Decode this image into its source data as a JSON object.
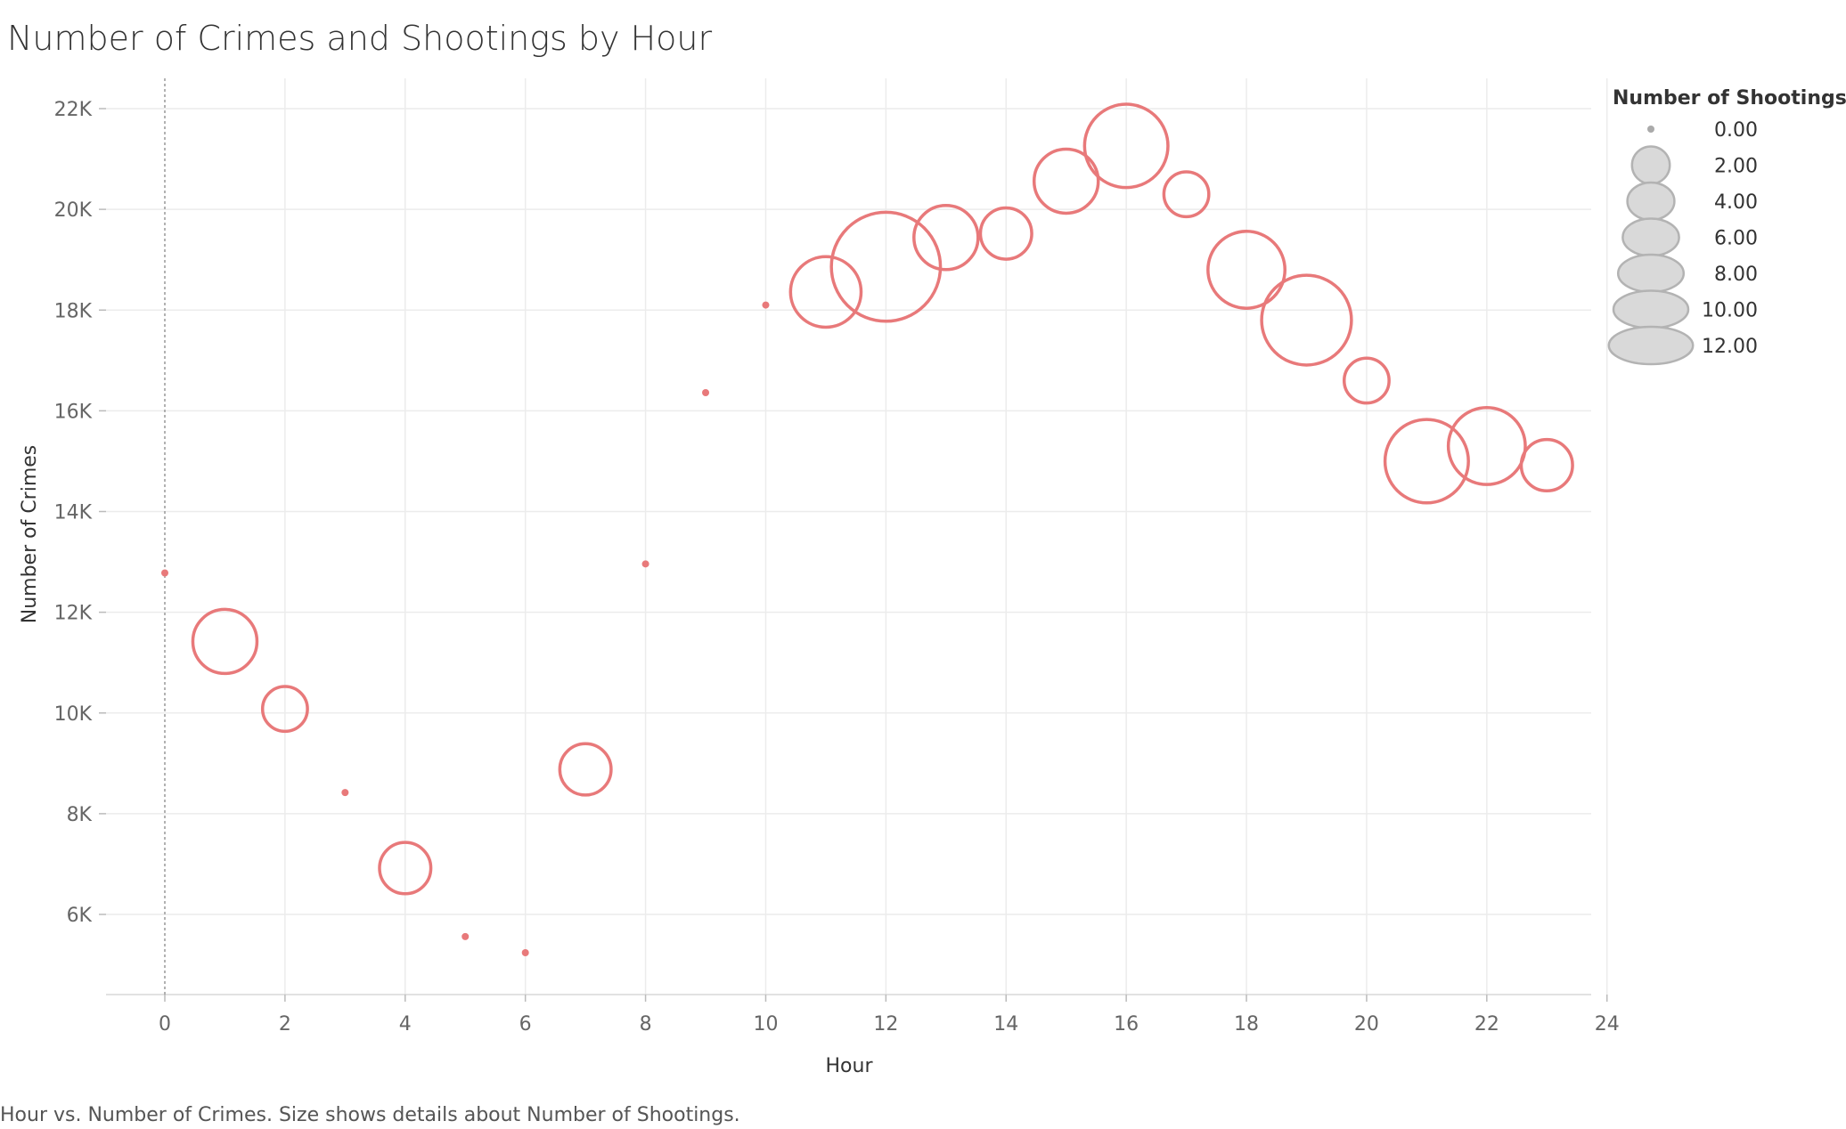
{
  "chart_data": {
    "type": "scatter",
    "title": "Number of Crimes and Shootings by Hour",
    "xlabel": "Hour",
    "ylabel": "Number of Crimes",
    "caption": "Hour vs. Number of Crimes.  Size shows details about Number of Shootings.",
    "xlim": [
      -1,
      24
    ],
    "ylim": [
      4600,
      22600
    ],
    "x_ticks": [
      0,
      2,
      4,
      6,
      8,
      10,
      12,
      14,
      16,
      18,
      20,
      22,
      24
    ],
    "y_ticks": [
      6000,
      8000,
      10000,
      12000,
      14000,
      16000,
      18000,
      20000,
      22000
    ],
    "y_tick_labels": [
      "6K",
      "8K",
      "10K",
      "12K",
      "14K",
      "16K",
      "18K",
      "20K",
      "22K"
    ],
    "grid": true,
    "legend_placement": "top-right",
    "mark_color": "#e8797a",
    "size_legend": {
      "title": "Number of Shootings",
      "values": [
        0,
        2,
        4,
        6,
        8,
        10,
        12
      ],
      "labels": [
        "0.00",
        "2.00",
        "4.00",
        "6.00",
        "8.00",
        "10.00",
        "12.00"
      ]
    },
    "points": [
      {
        "hour": 0,
        "crimes": 12780,
        "shootings": 0
      },
      {
        "hour": 1,
        "crimes": 11420,
        "shootings": 5
      },
      {
        "hour": 2,
        "crimes": 10080,
        "shootings": 2
      },
      {
        "hour": 3,
        "crimes": 8420,
        "shootings": 0
      },
      {
        "hour": 4,
        "crimes": 6920,
        "shootings": 3
      },
      {
        "hour": 5,
        "crimes": 5560,
        "shootings": 0
      },
      {
        "hour": 6,
        "crimes": 5240,
        "shootings": 0
      },
      {
        "hour": 7,
        "crimes": 8880,
        "shootings": 3
      },
      {
        "hour": 8,
        "crimes": 12960,
        "shootings": 0
      },
      {
        "hour": 9,
        "crimes": 16360,
        "shootings": 0
      },
      {
        "hour": 10,
        "crimes": 18100,
        "shootings": 0
      },
      {
        "hour": 11,
        "crimes": 18360,
        "shootings": 6
      },
      {
        "hour": 12,
        "crimes": 18860,
        "shootings": 12
      },
      {
        "hour": 13,
        "crimes": 19440,
        "shootings": 5
      },
      {
        "hour": 14,
        "crimes": 19520,
        "shootings": 3
      },
      {
        "hour": 15,
        "crimes": 20560,
        "shootings": 5
      },
      {
        "hour": 16,
        "crimes": 21260,
        "shootings": 8
      },
      {
        "hour": 17,
        "crimes": 20300,
        "shootings": 2
      },
      {
        "hour": 18,
        "crimes": 18800,
        "shootings": 7
      },
      {
        "hour": 19,
        "crimes": 17800,
        "shootings": 9
      },
      {
        "hour": 20,
        "crimes": 16600,
        "shootings": 2
      },
      {
        "hour": 21,
        "crimes": 15000,
        "shootings": 8
      },
      {
        "hour": 22,
        "crimes": 15300,
        "shootings": 7
      },
      {
        "hour": 23,
        "crimes": 14920,
        "shootings": 3
      }
    ]
  }
}
